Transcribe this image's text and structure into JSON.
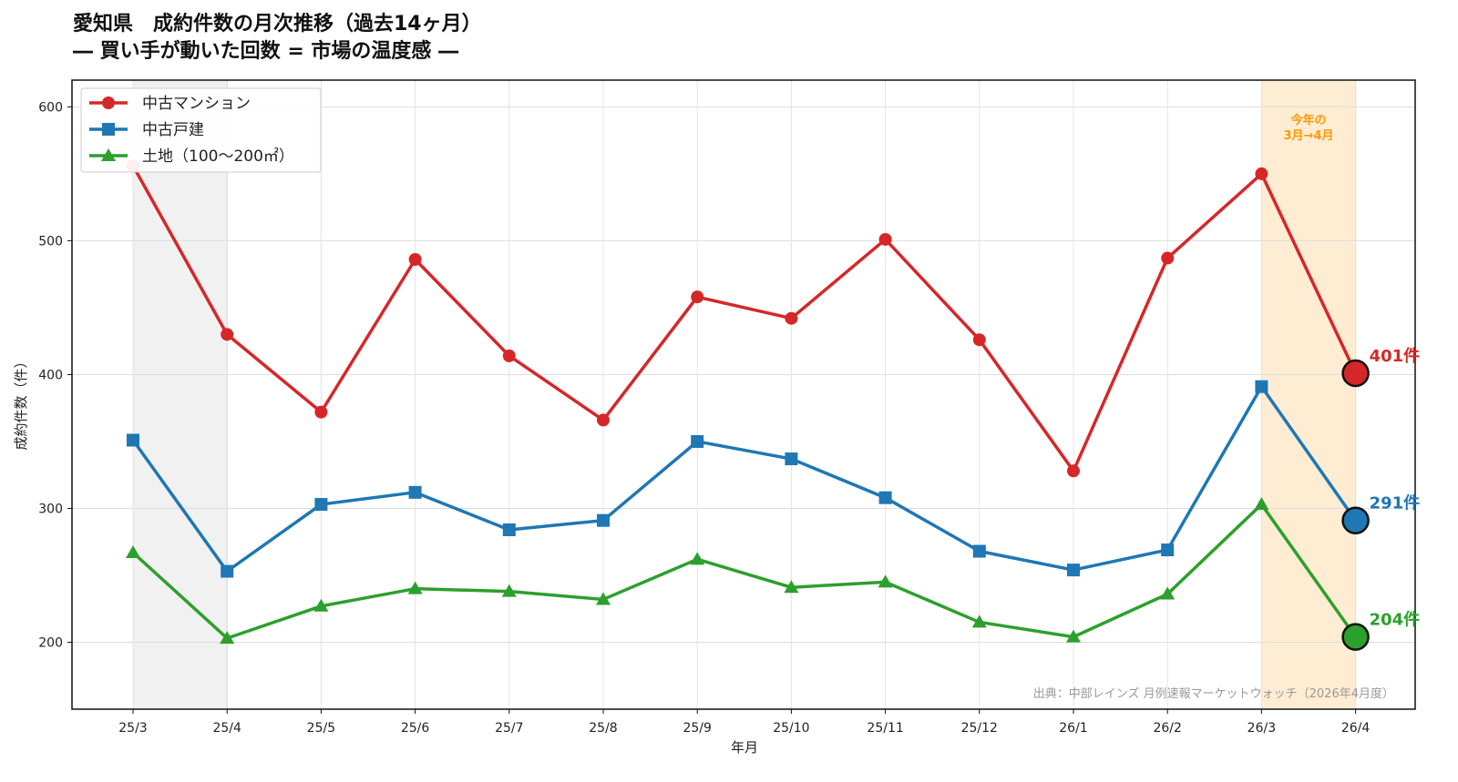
{
  "chart_data": {
    "type": "line",
    "title": "愛知県　成約件数の月次推移（過去14ヶ月）",
    "subtitle": "― 買い手が動いた回数 = 市場の温度感 ―",
    "xlabel": "年月",
    "ylabel": "成約件数（件）",
    "ylim": [
      150,
      620
    ],
    "yticks": [
      200,
      300,
      400,
      500,
      600
    ],
    "grid": true,
    "legend_position": "top-left",
    "categories": [
      "25/3",
      "25/4",
      "25/5",
      "25/6",
      "25/7",
      "25/8",
      "25/9",
      "25/10",
      "25/11",
      "25/12",
      "26/1",
      "26/2",
      "26/3",
      "26/4"
    ],
    "series": [
      {
        "name": "中古マンション",
        "color": "#d62728",
        "marker": "circle",
        "values": [
          556,
          430,
          372,
          486,
          414,
          366,
          458,
          442,
          501,
          426,
          328,
          487,
          550,
          401
        ]
      },
      {
        "name": "中古戸建",
        "color": "#1f77b4",
        "marker": "square",
        "values": [
          351,
          253,
          303,
          312,
          284,
          291,
          350,
          337,
          308,
          268,
          254,
          269,
          391,
          291
        ]
      },
      {
        "name": "土地（100〜200㎡）",
        "color": "#2ca02c",
        "marker": "triangle",
        "values": [
          267,
          203,
          227,
          240,
          238,
          232,
          262,
          241,
          245,
          215,
          204,
          236,
          303,
          204
        ]
      }
    ],
    "end_labels": [
      "401件",
      "291件",
      "204件"
    ],
    "highlight_grey": {
      "from": "25/3",
      "to": "25/4"
    },
    "highlight_orange": {
      "from": "26/3",
      "to": "26/4",
      "label_line1": "今年の",
      "label_line2": "3月→4月",
      "color": "#ff9800"
    },
    "source_note": "出典：中部レインズ 月例速報マーケットウォッチ（2026年4月度）"
  }
}
